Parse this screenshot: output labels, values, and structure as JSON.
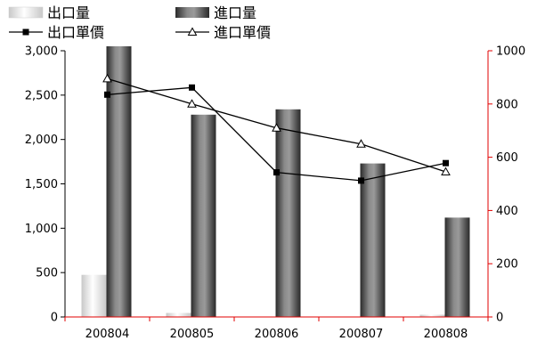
{
  "chart_data": {
    "type": "bar",
    "title": "",
    "xlabel": "",
    "categories": [
      "200804",
      "200805",
      "200806",
      "200807",
      "200808"
    ],
    "y_left": {
      "ylim": [
        0,
        3000
      ],
      "ticks": [
        "0",
        "500",
        "1,000",
        "1,500",
        "2,000",
        "2,500",
        "3,000"
      ],
      "axis_color": "#000000"
    },
    "y_right": {
      "ylim": [
        0,
        1000
      ],
      "ticks": [
        "0",
        "200",
        "400",
        "600",
        "800",
        "1000"
      ],
      "axis_color": "#e00000"
    },
    "series": [
      {
        "name": "出口量",
        "kind": "bar",
        "axis": "left",
        "values": [
          475,
          45,
          5,
          5,
          25
        ],
        "color": "#d9d9d9"
      },
      {
        "name": "進口量",
        "kind": "bar",
        "axis": "left",
        "values": [
          3050,
          2280,
          2340,
          1730,
          1120
        ],
        "color": "#555555"
      },
      {
        "name": "出口單價",
        "kind": "line",
        "axis": "right",
        "marker": "square",
        "values": [
          835,
          862,
          543,
          512,
          578
        ],
        "color": "#000000"
      },
      {
        "name": "進口單價",
        "kind": "line",
        "axis": "right",
        "marker": "triangle",
        "values": [
          895,
          800,
          710,
          650,
          545
        ],
        "color": "#000000"
      }
    ],
    "legend_placement": "top-left",
    "grid": false
  }
}
